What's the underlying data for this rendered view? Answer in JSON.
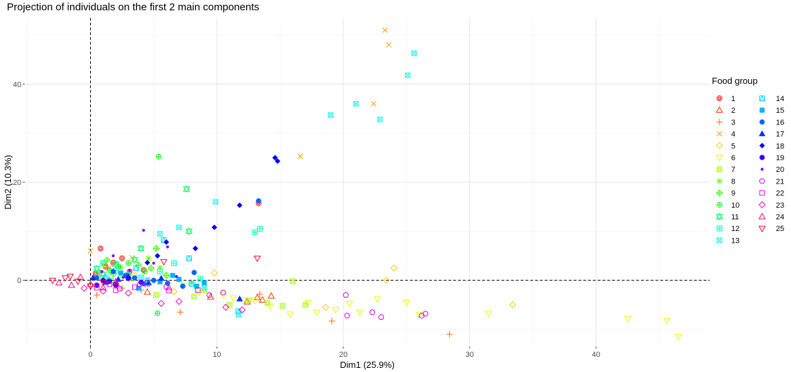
{
  "chart_data": {
    "type": "scatter",
    "title": "Projection of individuals on the first 2 main components",
    "xlabel": "Dim1 (25.9%)",
    "ylabel": "Dim2 (10.3%)",
    "xlim": [
      -5.2,
      49
    ],
    "ylim": [
      -13.5,
      53.5
    ],
    "xticks": [
      0,
      10,
      20,
      30,
      40
    ],
    "yticks": [
      0,
      20,
      40
    ],
    "grid": true,
    "reference_lines": {
      "x": 0,
      "y": 0,
      "style": "dashed"
    },
    "legend": {
      "title": "Food group",
      "position": "right"
    },
    "series": [
      {
        "name": "1",
        "color": "#FF0000",
        "shape": "circle-ring",
        "points": [
          [
            1.2,
            2.8
          ],
          [
            2.5,
            4.5
          ],
          [
            3.1,
            1.8
          ],
          [
            0.8,
            6.5
          ],
          [
            13.3,
            15.7
          ],
          [
            4.2,
            2.1
          ],
          [
            1.8,
            3.6
          ],
          [
            0.4,
            1.4
          ]
        ]
      },
      {
        "name": "2",
        "color": "#FF3300",
        "shape": "triangle-up-open",
        "points": [
          [
            13.6,
            -4.0
          ],
          [
            14.3,
            -3.2
          ],
          [
            9.5,
            -3.4
          ],
          [
            4.5,
            -2.4
          ],
          [
            13.2,
            -3.5
          ],
          [
            12.4,
            -4.4
          ],
          [
            6.2,
            -1.5
          ]
        ]
      },
      {
        "name": "3",
        "color": "#FF6A00",
        "shape": "plus",
        "points": [
          [
            28.4,
            -11.0
          ],
          [
            19.1,
            -8.3
          ],
          [
            7.1,
            -6.5
          ],
          [
            2.5,
            -1.6
          ],
          [
            0.5,
            -3.0
          ],
          [
            13.4,
            -2.8
          ],
          [
            4.0,
            -2.0
          ]
        ]
      },
      {
        "name": "4",
        "color": "#FF9900",
        "shape": "cross",
        "points": [
          [
            23.3,
            51.0
          ],
          [
            23.6,
            48.0
          ],
          [
            22.4,
            36.0
          ],
          [
            16.6,
            25.3
          ],
          [
            0.0,
            6.0
          ],
          [
            1.5,
            2.5
          ],
          [
            3.3,
            4.6
          ]
        ]
      },
      {
        "name": "5",
        "color": "#FFCC00",
        "shape": "diamond-open",
        "points": [
          [
            24.0,
            2.5
          ],
          [
            33.4,
            -5.0
          ],
          [
            9.8,
            1.5
          ],
          [
            23.4,
            0.0
          ],
          [
            18.6,
            -5.5
          ],
          [
            3.5,
            1.0
          ],
          [
            6.6,
            -2.3
          ]
        ]
      },
      {
        "name": "6",
        "color": "#E6FF00",
        "shape": "triangle-down-open",
        "points": [
          [
            46.5,
            -11.5
          ],
          [
            45.6,
            -8.2
          ],
          [
            42.5,
            -7.8
          ],
          [
            31.5,
            -6.7
          ],
          [
            25.0,
            -4.5
          ],
          [
            21.3,
            -6.5
          ],
          [
            15.8,
            -6.9
          ],
          [
            14.2,
            -5.3
          ],
          [
            12.1,
            -4.0
          ],
          [
            17.2,
            -4.5
          ],
          [
            10.5,
            -3.0
          ],
          [
            8.6,
            -2.5
          ],
          [
            19.4,
            -6.0
          ],
          [
            22.7,
            -3.8
          ],
          [
            26.0,
            -7.0
          ],
          [
            17.9,
            -6.5
          ],
          [
            11.3,
            -3.6
          ],
          [
            13.0,
            -4.2
          ],
          [
            20.5,
            -4.7
          ]
        ]
      },
      {
        "name": "7",
        "color": "#A3FF00",
        "shape": "square-square",
        "points": [
          [
            16.0,
            -0.2
          ],
          [
            11.0,
            -5.0
          ],
          [
            5.2,
            -3.0
          ],
          [
            9.0,
            -2.0
          ],
          [
            8.2,
            -3.3
          ],
          [
            12.5,
            -4.1
          ],
          [
            15.2,
            -5.2
          ],
          [
            14.0,
            -4.6
          ],
          [
            17.0,
            -5.0
          ]
        ]
      },
      {
        "name": "8",
        "color": "#66FF00",
        "shape": "asterisk",
        "points": [
          [
            3.2,
            0.3
          ],
          [
            7.3,
            -1.0
          ],
          [
            4.6,
            4.5
          ],
          [
            2.4,
            2.7
          ],
          [
            5.5,
            2.6
          ],
          [
            1.0,
            3.1
          ],
          [
            8.0,
            -0.5
          ]
        ]
      },
      {
        "name": "9",
        "color": "#33FF00",
        "shape": "diamond-plus",
        "points": [
          [
            2.5,
            1.1
          ],
          [
            3.8,
            3.1
          ],
          [
            1.3,
            4.1
          ],
          [
            6.0,
            1.0
          ],
          [
            4.8,
            2.5
          ],
          [
            1.8,
            1.3
          ],
          [
            5.2,
            6.5
          ]
        ]
      },
      {
        "name": "10",
        "color": "#00FF19",
        "shape": "circle-plus",
        "points": [
          [
            5.4,
            25.2
          ],
          [
            5.3,
            -6.7
          ],
          [
            1.5,
            2.0
          ],
          [
            3.0,
            3.5
          ],
          [
            0.7,
            1.5
          ],
          [
            2.2,
            2.8
          ],
          [
            4.3,
            1.8
          ]
        ]
      },
      {
        "name": "11",
        "color": "#00FF66",
        "shape": "star-of-david",
        "points": [
          [
            7.6,
            18.6
          ],
          [
            7.8,
            10.0
          ],
          [
            4.0,
            6.5
          ],
          [
            1.0,
            1.2
          ],
          [
            2.0,
            3.3
          ],
          [
            0.5,
            2.4
          ],
          [
            3.5,
            4.2
          ],
          [
            1.5,
            0.0
          ]
        ]
      },
      {
        "name": "12",
        "color": "#00FFB3",
        "shape": "square-plus",
        "points": [
          [
            13.0,
            9.8
          ],
          [
            13.4,
            10.5
          ],
          [
            5.5,
            1.8
          ],
          [
            6.6,
            3.5
          ],
          [
            2.0,
            2.0
          ],
          [
            8.7,
            0.3
          ],
          [
            3.0,
            1.1
          ],
          [
            1.0,
            3.6
          ]
        ]
      },
      {
        "name": "13",
        "color": "#00FFFF",
        "shape": "square-cross",
        "points": [
          [
            25.6,
            46.3
          ],
          [
            25.1,
            41.8
          ],
          [
            21.0,
            36.0
          ],
          [
            22.9,
            32.8
          ],
          [
            19.0,
            33.7
          ],
          [
            9.9,
            16.0
          ],
          [
            5.5,
            9.5
          ],
          [
            7.0,
            10.8
          ],
          [
            11.7,
            -7.0
          ],
          [
            9.0,
            -1.5
          ],
          [
            4.0,
            0.6
          ]
        ]
      },
      {
        "name": "14",
        "color": "#00D9FF",
        "shape": "square-triangle",
        "points": [
          [
            5.8,
            8.2
          ],
          [
            7.8,
            4.5
          ],
          [
            8.0,
            -0.7
          ],
          [
            11.7,
            -6.3
          ],
          [
            4.5,
            0.0
          ],
          [
            3.6,
            2.5
          ],
          [
            1.2,
            0.6
          ]
        ]
      },
      {
        "name": "15",
        "color": "#00B3FF",
        "shape": "square-filled",
        "points": [
          [
            6.5,
            1.0
          ],
          [
            5.5,
            -0.3
          ],
          [
            9.0,
            -0.5
          ],
          [
            7.0,
            0.2
          ],
          [
            8.4,
            -1.2
          ],
          [
            3.8,
            -1.6
          ],
          [
            2.4,
            1.5
          ]
        ]
      },
      {
        "name": "16",
        "color": "#0066FF",
        "shape": "circle-filled",
        "points": [
          [
            13.3,
            16.2
          ],
          [
            8.2,
            1.6
          ],
          [
            2.0,
            -1.0
          ],
          [
            5.0,
            0.0
          ],
          [
            6.1,
            -0.6
          ],
          [
            0.5,
            0.5
          ],
          [
            1.8,
            1.8
          ],
          [
            3.5,
            0.5
          ],
          [
            7.3,
            -1.2
          ],
          [
            4.2,
            -0.7
          ],
          [
            2.8,
            1.0
          ]
        ]
      },
      {
        "name": "17",
        "color": "#0033FF",
        "shape": "triangle-filled",
        "points": [
          [
            11.8,
            -3.8
          ],
          [
            0.2,
            0.5
          ],
          [
            1.2,
            -0.4
          ],
          [
            3.0,
            0.8
          ],
          [
            4.6,
            -0.5
          ],
          [
            2.2,
            0.2
          ],
          [
            5.6,
            0.4
          ]
        ]
      },
      {
        "name": "18",
        "color": "#0000FF",
        "shape": "diamond-filled",
        "points": [
          [
            14.6,
            25.0
          ],
          [
            14.8,
            24.3
          ],
          [
            11.8,
            15.3
          ],
          [
            9.8,
            10.8
          ],
          [
            8.3,
            6.5
          ],
          [
            6.0,
            7.8
          ],
          [
            4.5,
            3.6
          ],
          [
            5.3,
            5.0
          ]
        ]
      },
      {
        "name": "19",
        "color": "#3300FF",
        "shape": "circle-filled",
        "points": [
          [
            1.0,
            0.0
          ],
          [
            2.0,
            -0.8
          ],
          [
            0.5,
            -1.0
          ],
          [
            3.0,
            0.4
          ],
          [
            1.5,
            -0.2
          ],
          [
            4.0,
            -0.4
          ]
        ]
      },
      {
        "name": "20",
        "color": "#7F00FF",
        "shape": "small-dot",
        "points": [
          [
            4.2,
            10.2
          ],
          [
            6.1,
            6.8
          ],
          [
            1.8,
            5.0
          ],
          [
            3.1,
            2.0
          ],
          [
            5.0,
            3.5
          ],
          [
            2.6,
            0.6
          ],
          [
            0.9,
            1.8
          ],
          [
            6.8,
            0.8
          ]
        ]
      },
      {
        "name": "21",
        "color": "#CC00FF",
        "shape": "circle-open",
        "points": [
          [
            26.5,
            -6.8
          ],
          [
            26.2,
            -7.2
          ],
          [
            23.0,
            -7.5
          ],
          [
            22.3,
            -6.5
          ],
          [
            20.2,
            -3.0
          ],
          [
            20.3,
            -7.2
          ],
          [
            9.4,
            -3.0
          ],
          [
            10.5,
            -2.5
          ],
          [
            3.9,
            -0.8
          ],
          [
            0.5,
            -1.0
          ],
          [
            2.3,
            -1.7
          ],
          [
            6.0,
            -1.3
          ]
        ]
      },
      {
        "name": "22",
        "color": "#FF00E6",
        "shape": "square-open",
        "points": [
          [
            8.5,
            -2.0
          ],
          [
            2.0,
            -2.0
          ],
          [
            0.5,
            -1.5
          ],
          [
            4.5,
            -0.7
          ],
          [
            6.2,
            -2.1
          ],
          [
            1.5,
            -0.8
          ],
          [
            3.5,
            -1.4
          ]
        ]
      },
      {
        "name": "23",
        "color": "#FF00B3",
        "shape": "diamond-open",
        "points": [
          [
            12.0,
            -6.0
          ],
          [
            7.0,
            -4.3
          ],
          [
            5.6,
            -4.7
          ],
          [
            1.0,
            -2.2
          ],
          [
            3.0,
            -2.6
          ],
          [
            -0.5,
            -1.6
          ],
          [
            2.0,
            -1.0
          ],
          [
            10.7,
            -5.5
          ]
        ]
      },
      {
        "name": "24",
        "color": "#FF0080",
        "shape": "triangle-up-open",
        "points": [
          [
            -1.5,
            -1.0
          ],
          [
            0.0,
            -0.8
          ],
          [
            1.0,
            -1.5
          ],
          [
            -2.5,
            -0.5
          ],
          [
            2.0,
            -0.3
          ],
          [
            -0.8,
            0.6
          ]
        ]
      },
      {
        "name": "25",
        "color": "#FF0033",
        "shape": "triangle-down-open",
        "points": [
          [
            13.2,
            4.5
          ],
          [
            5.8,
            3.8
          ],
          [
            -2.0,
            0.5
          ],
          [
            -1.0,
            -0.2
          ],
          [
            -3.0,
            0.0
          ],
          [
            0.0,
            -1.2
          ],
          [
            1.0,
            -0.4
          ],
          [
            -1.6,
            0.8
          ]
        ]
      }
    ]
  }
}
